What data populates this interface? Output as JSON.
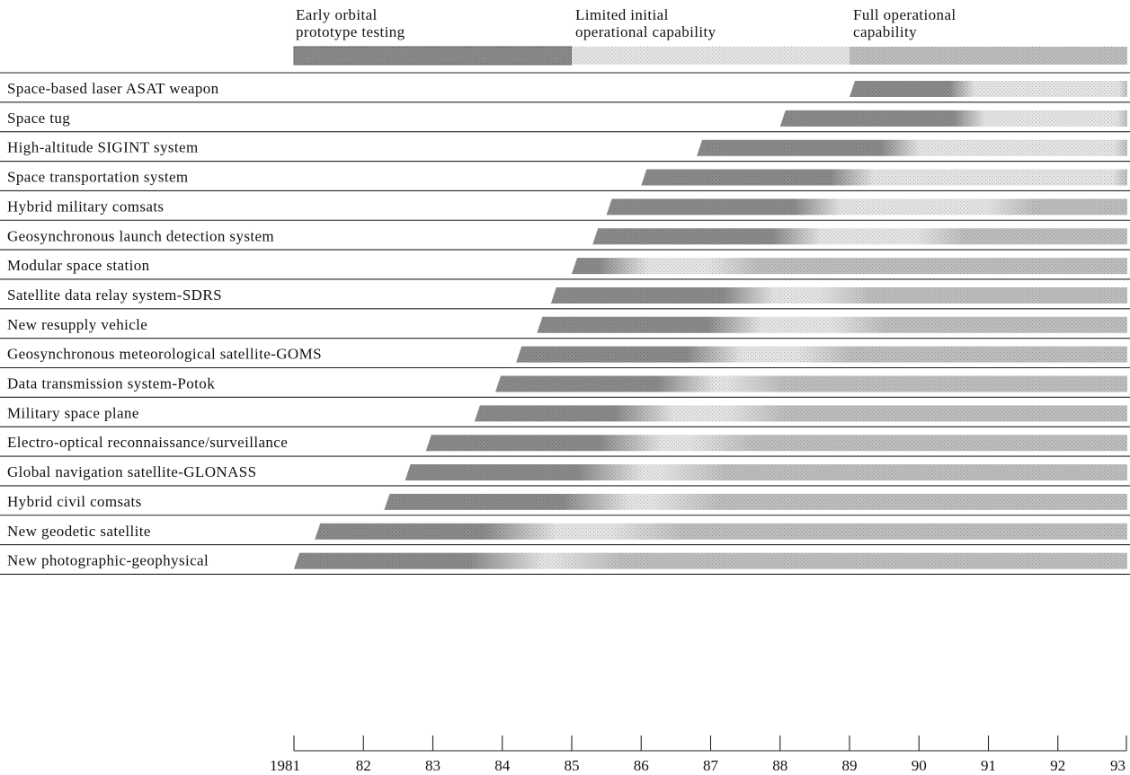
{
  "chart_data": {
    "type": "bar",
    "subtype": "timeline-gantt",
    "title": "",
    "xlabel": "",
    "ylabel": "",
    "xlim": [
      1981,
      1993
    ],
    "x_ticks": [
      1981,
      1982,
      1983,
      1984,
      1985,
      1986,
      1987,
      1988,
      1989,
      1990,
      1991,
      1992,
      1993
    ],
    "x_tick_labels": [
      "1981",
      "82",
      "83",
      "84",
      "85",
      "86",
      "87",
      "88",
      "89",
      "90",
      "91",
      "92",
      "93"
    ],
    "grid": false,
    "legend_position": "top",
    "phases": [
      {
        "name": "Early orbital prototype testing",
        "from": 1981,
        "to": 1985,
        "color": "#8a8a8a"
      },
      {
        "name": "Limited initial operational capability",
        "from": 1985,
        "to": 1989,
        "color": "#e4e4e4"
      },
      {
        "name": "Full operational capability",
        "from": 1989,
        "to": 1993,
        "color": "#bdbdbd"
      }
    ],
    "legend_lines": [
      [
        "Early orbital",
        "prototype testing"
      ],
      [
        "Limited initial",
        "operational capability"
      ],
      [
        "Full operational",
        "capability"
      ]
    ],
    "series": [
      {
        "label": "Space-based laser ASAT weapon",
        "start": 1989.0,
        "ioc": 1990.6,
        "foc": 1993.0
      },
      {
        "label": "Space tug",
        "start": 1988.0,
        "ioc": 1990.7,
        "foc": 1993.0
      },
      {
        "label": "High-altitude SIGINT system",
        "start": 1986.8,
        "ioc": 1989.7,
        "foc": 1993.0
      },
      {
        "label": "Space transportation system",
        "start": 1986.0,
        "ioc": 1989.0,
        "foc": 1993.0
      },
      {
        "label": "Hybrid military comsats",
        "start": 1985.5,
        "ioc": 1988.5,
        "foc": 1991.2
      },
      {
        "label": "Geosynchronous launch detection system",
        "start": 1985.3,
        "ioc": 1988.2,
        "foc": 1990.2
      },
      {
        "label": "Modular space station",
        "start": 1985.0,
        "ioc": 1985.7,
        "foc": 1987.2
      },
      {
        "label": "Satellite data relay system-SDRS",
        "start": 1984.7,
        "ioc": 1987.5,
        "foc": 1988.8
      },
      {
        "label": "New resupply vehicle",
        "start": 1984.5,
        "ioc": 1987.3,
        "foc": 1989.0
      },
      {
        "label": "Geosynchronous meteorological satellite-GOMS",
        "start": 1984.2,
        "ioc": 1987.0,
        "foc": 1988.5
      },
      {
        "label": "Data transmission system-Potok",
        "start": 1983.9,
        "ioc": 1986.6,
        "foc": 1987.5
      },
      {
        "label": "Military space plane",
        "start": 1983.6,
        "ioc": 1986.0,
        "foc": 1987.5
      },
      {
        "label": "Electro-optical reconnaissance/surveillance",
        "start": 1982.9,
        "ioc": 1985.8,
        "foc": 1987.0
      },
      {
        "label": "Global navigation satellite-GLONASS",
        "start": 1982.6,
        "ioc": 1985.5,
        "foc": 1986.6
      },
      {
        "label": "Hybrid civil comsats",
        "start": 1982.3,
        "ioc": 1985.3,
        "foc": 1986.5
      },
      {
        "label": "New geodetic satellite",
        "start": 1981.3,
        "ioc": 1984.2,
        "foc": 1985.9
      },
      {
        "label": "New photographic-geophysical",
        "start": 1981.0,
        "ioc": 1984.0,
        "foc": 1985.0
      }
    ]
  }
}
